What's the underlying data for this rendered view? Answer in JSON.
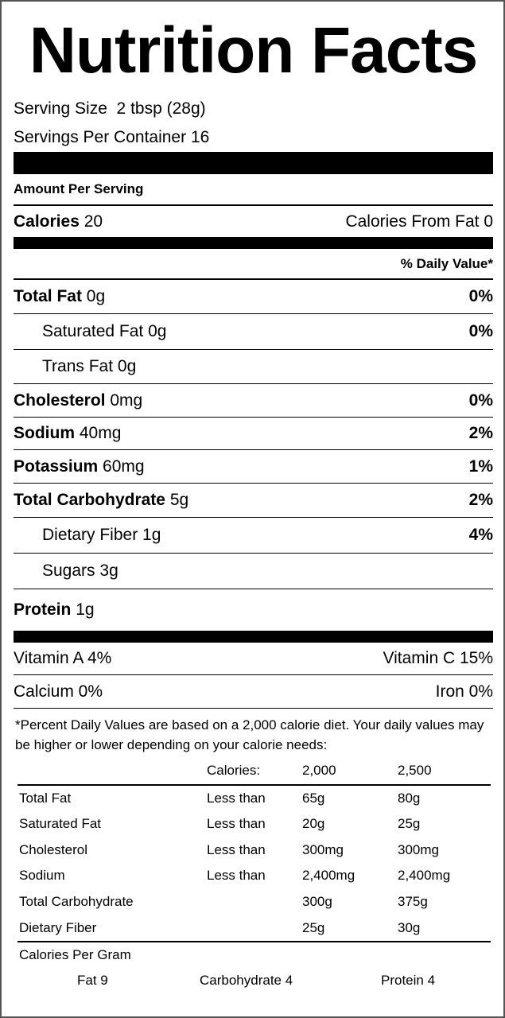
{
  "title": "Nutrition Facts",
  "serving_size": "Serving Size  2 tbsp (28g)",
  "servings_per_container": "Servings Per Container 16",
  "amount_per_serving": "Amount Per Serving",
  "calories": {
    "label": "Calories",
    "value": "20",
    "from_fat": "Calories From Fat 0"
  },
  "daily_value_header": "% Daily Value*",
  "nutrients": [
    {
      "name": "Total Fat",
      "amount": "0g",
      "dv": "0%"
    },
    {
      "name": "Saturated Fat",
      "amount": "0g",
      "dv": "0%"
    },
    {
      "name": "Trans Fat",
      "amount": "0g",
      "dv": ""
    },
    {
      "name": "Cholesterol",
      "amount": "0mg",
      "dv": "0%"
    },
    {
      "name": "Sodium",
      "amount": "40mg",
      "dv": "2%"
    },
    {
      "name": "Potassium",
      "amount": "60mg",
      "dv": "1%"
    },
    {
      "name": "Total Carbohydrate",
      "amount": "5g",
      "dv": "2%"
    },
    {
      "name": "Dietary Fiber",
      "amount": "1g",
      "dv": "4%"
    },
    {
      "name": "Sugars",
      "amount": "3g",
      "dv": ""
    },
    {
      "name": "Protein",
      "amount": "1g",
      "dv": ""
    }
  ],
  "vitamins": [
    {
      "left": "Vitamin A 4%",
      "right": "Vitamin C 15%"
    },
    {
      "left": "Calcium 0%",
      "right": "Iron 0%"
    }
  ],
  "footnote": "*Percent Daily Values are based on a 2,000 calorie diet. Your daily values may be higher or lower depending on your calorie needs:",
  "dv_table": {
    "header": [
      "",
      "Calories:",
      "2,000",
      "2,500"
    ],
    "rows": [
      [
        "Total Fat",
        "Less than",
        "65g",
        "80g"
      ],
      [
        "Saturated Fat",
        "Less than",
        "20g",
        "25g"
      ],
      [
        "Cholesterol",
        "Less than",
        "300mg",
        "300mg"
      ],
      [
        "Sodium",
        "Less than",
        "2,400mg",
        "2,400mg"
      ],
      [
        "Total Carbohydrate",
        "",
        "300g",
        "375g"
      ],
      [
        "Dietary Fiber",
        "",
        "25g",
        "30g"
      ]
    ]
  },
  "calories_per_gram": {
    "label": "Calories Per Gram",
    "fat": "Fat 9",
    "carbohydrate": "Carbohydrate 4",
    "protein": "Protein 4"
  }
}
